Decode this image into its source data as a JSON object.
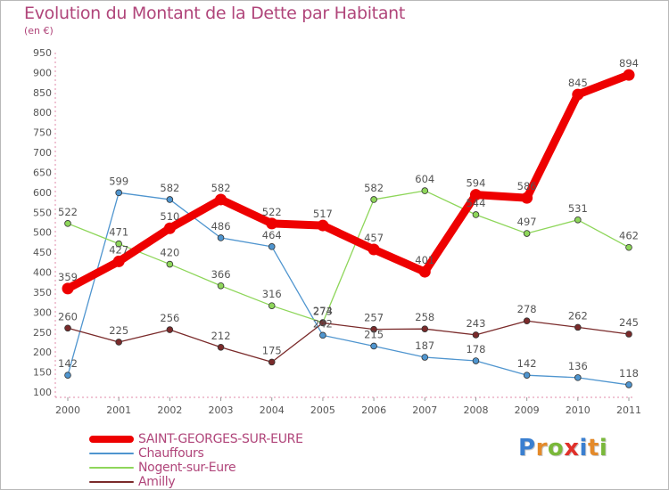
{
  "title": "Evolution du Montant de la Dette par Habitant",
  "subtitle": "(en €)",
  "logo": {
    "letters": [
      "P",
      "r",
      "o",
      "x",
      "i",
      "t",
      "i"
    ],
    "colors": [
      "#3a7fd0",
      "#e48a2a",
      "#7ab83a",
      "#e0302a",
      "#3a7fd0",
      "#e48a2a",
      "#7ab83a"
    ]
  },
  "chart_data": {
    "type": "line",
    "title": "Evolution du Montant de la Dette par Habitant",
    "ylabel": "(en €)",
    "xlabel": "",
    "x": [
      "2000",
      "2001",
      "2002",
      "2003",
      "2004",
      "2005",
      "2006",
      "2007",
      "2008",
      "2009",
      "2010",
      "2011"
    ],
    "ylim": [
      100,
      950
    ],
    "yticks": [
      "100",
      "150",
      "200",
      "250",
      "300",
      "350",
      "400",
      "450",
      "500",
      "550",
      "600",
      "650",
      "700",
      "750",
      "800",
      "850",
      "900",
      "950"
    ],
    "grid": false,
    "legend_position": "bottom-left",
    "series": [
      {
        "name": "Chauffours",
        "color": "#4f95cf",
        "values": [
          142,
          599,
          582,
          486,
          464,
          242,
          215,
          187,
          178,
          142,
          136,
          118
        ],
        "labels": [
          "142",
          "599",
          "582",
          "486",
          "464",
          "242",
          "215",
          "187",
          "178",
          "142",
          "136",
          "118"
        ]
      },
      {
        "name": "Nogent-sur-Eure",
        "color": "#8ed65a",
        "values": [
          522,
          471,
          420,
          366,
          316,
          274,
          582,
          604,
          544,
          497,
          531,
          462
        ],
        "labels": [
          "522",
          "471",
          "420",
          "366",
          "316",
          "274",
          "582",
          "604",
          "544",
          "497",
          "531",
          "462"
        ]
      },
      {
        "name": "Amilly",
        "color": "#7a2a2a",
        "values": [
          260,
          225,
          256,
          212,
          175,
          273,
          257,
          258,
          243,
          278,
          262,
          245
        ],
        "labels": [
          "260",
          "225",
          "256",
          "212",
          "175",
          "273",
          "257",
          "258",
          "243",
          "278",
          "262",
          "245"
        ]
      },
      {
        "name": "SAINT-GEORGES-SUR-EURE",
        "color": "#ee0000",
        "values": [
          359,
          427,
          510,
          582,
          522,
          517,
          457,
          401,
          594,
          586,
          845,
          894
        ],
        "labels": [
          "359",
          "427",
          "510",
          "582",
          "522",
          "517",
          "457",
          "401",
          "594",
          "586",
          "845",
          "894"
        ]
      }
    ]
  },
  "legend": [
    {
      "name": "SAINT-GEORGES-SUR-EURE",
      "color": "#ee0000",
      "text_color": "#b0457a"
    },
    {
      "name": "Chauffours",
      "color": "#4f95cf",
      "text_color": "#b0457a"
    },
    {
      "name": "Nogent-sur-Eure",
      "color": "#8ed65a",
      "text_color": "#b0457a"
    },
    {
      "name": "Amilly",
      "color": "#7a2a2a",
      "text_color": "#b0457a"
    }
  ]
}
